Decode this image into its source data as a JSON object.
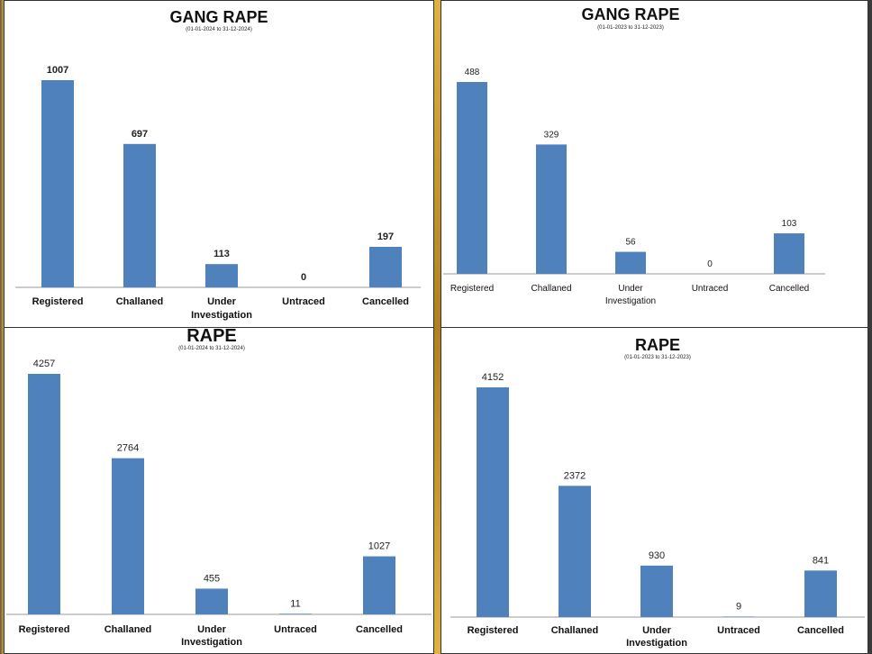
{
  "chart_data": [
    {
      "type": "bar",
      "title": "GANG RAPE",
      "subtitle": "(01-01-2024 to 31-12-2024)",
      "categories": [
        "Registered",
        "Challaned",
        "Under Investigation",
        "Untraced",
        "Cancelled"
      ],
      "values": [
        1007,
        697,
        113,
        0,
        197
      ],
      "color": "#4f81bd",
      "grid": false
    },
    {
      "type": "bar",
      "title": "GANG RAPE",
      "subtitle": "(01-01-2023 to 31-12-2023)",
      "categories": [
        "Registered",
        "Challaned",
        "Under Investigation",
        "Untraced",
        "Cancelled"
      ],
      "values": [
        488,
        329,
        56,
        0,
        103
      ],
      "color": "#4f81bd",
      "grid": false
    },
    {
      "type": "bar",
      "title": "RAPE",
      "subtitle": "(01-01-2024 to 31-12-2024)",
      "categories": [
        "Registered",
        "Challaned",
        "Under Investigation",
        "Untraced",
        "Cancelled"
      ],
      "values": [
        4257,
        2764,
        455,
        11,
        1027
      ],
      "color": "#4f81bd",
      "grid": false
    },
    {
      "type": "bar",
      "title": "RAPE",
      "subtitle": "(01-01-2023 to 31-12-2023)",
      "categories": [
        "Registered",
        "Challaned",
        "Under Investigation",
        "Untraced",
        "Cancelled"
      ],
      "values": [
        4152,
        2372,
        930,
        9,
        841
      ],
      "color": "#4f81bd",
      "grid": false
    }
  ]
}
